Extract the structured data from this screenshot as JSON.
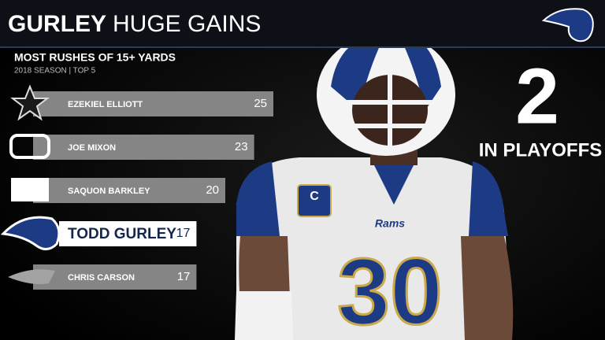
{
  "header": {
    "title_bold": "GURLEY",
    "title": "HUGE GAINS"
  },
  "chart_data": {
    "type": "bar",
    "orientation": "horizontal",
    "title": "MOST RUSHES OF 15+ YARDS",
    "subtitle": "2018 SEASON | TOP 5",
    "categories": [
      "EZEKIEL ELLIOTT",
      "JOE MIXON",
      "SAQUON BARKLEY",
      "TODD GURLEY",
      "CHRIS CARSON"
    ],
    "values": [
      25,
      23,
      20,
      17,
      17
    ],
    "colors": [
      "#858585",
      "#858585",
      "#858585",
      "#ffffff",
      "#858585"
    ],
    "label_colors": [
      "#ffffff",
      "#ffffff",
      "#ffffff",
      "#13264b",
      "#ffffff"
    ],
    "highlight": [
      false,
      false,
      false,
      true,
      false
    ]
  },
  "stat": {
    "value": 2,
    "label": "IN PLAYOFFS"
  },
  "photo": {
    "jersey_number": "30",
    "wordmark": "Rams",
    "patch": "C"
  }
}
